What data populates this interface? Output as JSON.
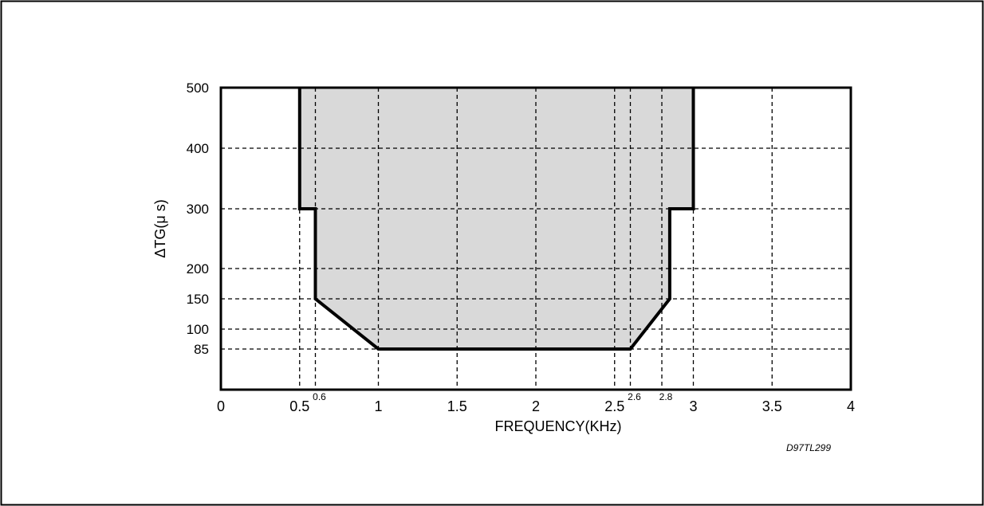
{
  "chart_data": {
    "type": "area",
    "title": "",
    "xlabel": "FREQUENCY(KHz)",
    "ylabel": "ΔTG(μ s)",
    "xlim": [
      0,
      4
    ],
    "ylim": [
      0,
      500
    ],
    "x_ticks": [
      {
        "value": 0,
        "label": "0"
      },
      {
        "value": 0.5,
        "label": "0.5"
      },
      {
        "value": 1,
        "label": "1"
      },
      {
        "value": 1.5,
        "label": "1.5"
      },
      {
        "value": 2,
        "label": "2"
      },
      {
        "value": 2.5,
        "label": "2.5"
      },
      {
        "value": 3,
        "label": "3"
      },
      {
        "value": 3.5,
        "label": "3.5"
      },
      {
        "value": 4,
        "label": "4"
      }
    ],
    "x_minor_labels": [
      {
        "value": 0.6,
        "label": "0.6"
      },
      {
        "value": 2.6,
        "label": "2.6"
      },
      {
        "value": 2.8,
        "label": "2.8"
      }
    ],
    "y_ticks": [
      {
        "value": 85,
        "label": "85"
      },
      {
        "value": 100,
        "label": "100"
      },
      {
        "value": 150,
        "label": "150"
      },
      {
        "value": 200,
        "label": "200"
      },
      {
        "value": 300,
        "label": "300"
      },
      {
        "value": 400,
        "label": "400"
      },
      {
        "value": 500,
        "label": "500"
      }
    ],
    "x_grid": [
      0.5,
      0.6,
      1,
      1.5,
      2,
      2.5,
      2.6,
      2.8,
      3,
      3.5
    ],
    "y_grid": [
      85,
      100,
      150,
      200,
      300,
      400
    ],
    "grid": true,
    "grid_style": "dashed",
    "mask": {
      "fill": "#d9d9d9",
      "points": [
        [
          0.5,
          500
        ],
        [
          0.5,
          300
        ],
        [
          0.6,
          300
        ],
        [
          0.6,
          150
        ],
        [
          1.0,
          85
        ],
        [
          2.6,
          85
        ],
        [
          2.85,
          150
        ],
        [
          2.85,
          300
        ],
        [
          3.0,
          300
        ],
        [
          3.0,
          500
        ]
      ]
    }
  },
  "figure_code": "D97TL299"
}
